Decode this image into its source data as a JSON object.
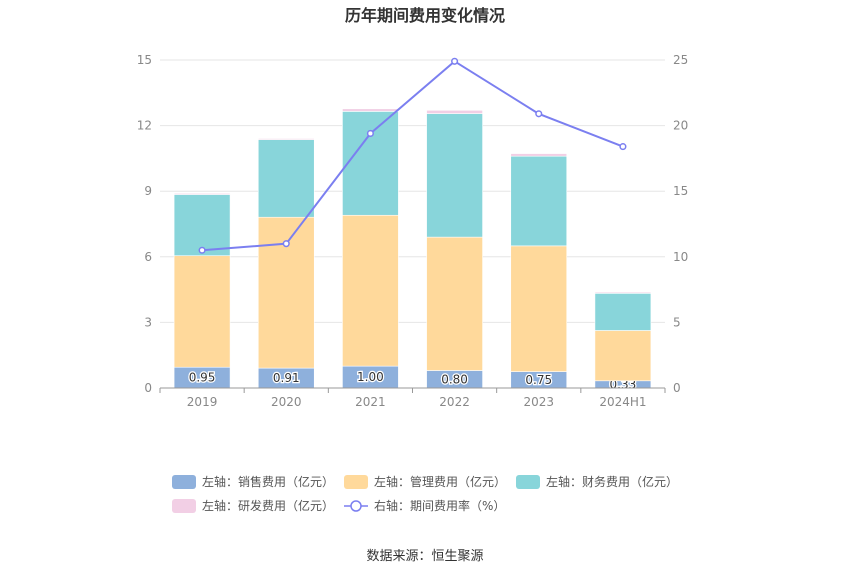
{
  "chart_data": {
    "type": "bar",
    "title": "历年期间费用变化情况",
    "categories": [
      "2019",
      "2020",
      "2021",
      "2022",
      "2023",
      "2024H1"
    ],
    "series": [
      {
        "name": "左轴：销售费用（亿元）",
        "axis": "left",
        "kind": "bar",
        "color": "#8eb0dc",
        "values": [
          0.95,
          0.91,
          1.0,
          0.8,
          0.75,
          0.33
        ],
        "labels": [
          "0.95",
          "0.91",
          "1.00",
          "0.80",
          "0.75",
          "0.33"
        ]
      },
      {
        "name": "左轴：管理费用（亿元）",
        "axis": "left",
        "kind": "bar",
        "color": "#ffd99b",
        "values": [
          5.1,
          6.9,
          6.9,
          6.1,
          5.75,
          2.3
        ]
      },
      {
        "name": "左轴：财务费用（亿元）",
        "axis": "left",
        "kind": "bar",
        "color": "#88d5da",
        "values": [
          2.8,
          3.55,
          4.75,
          5.65,
          4.1,
          1.7
        ]
      },
      {
        "name": "左轴：研发费用（亿元）",
        "axis": "left",
        "kind": "bar",
        "color": "#f2cfe5",
        "values": [
          0.05,
          0.05,
          0.12,
          0.15,
          0.12,
          0.05
        ]
      },
      {
        "name": "右轴：期间费用率（%）",
        "axis": "right",
        "kind": "line",
        "color": "#7b7ff0",
        "values": [
          10.5,
          11.0,
          19.4,
          24.9,
          20.9,
          18.4
        ]
      }
    ],
    "y_left": {
      "min": 0,
      "max": 15,
      "ticks": [
        "0",
        "3",
        "6",
        "9",
        "12",
        "15"
      ]
    },
    "y_right": {
      "min": 0,
      "max": 25,
      "ticks": [
        "0",
        "5",
        "10",
        "15",
        "20",
        "25"
      ]
    },
    "grid": true,
    "legend_position": "bottom"
  },
  "source": "数据来源：恒生聚源"
}
